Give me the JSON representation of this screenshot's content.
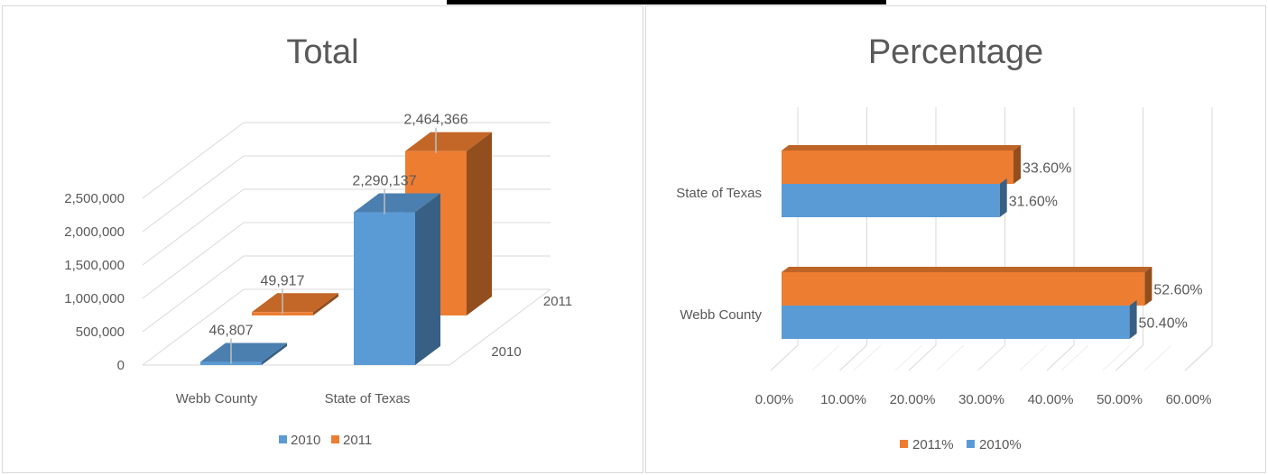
{
  "chart_data": [
    {
      "type": "bar",
      "title": "Total",
      "categories": [
        "Webb County",
        "State of Texas"
      ],
      "depth_labels": [
        "2010",
        "2011"
      ],
      "series": [
        {
          "name": "2010",
          "values": [
            46807,
            2290137
          ],
          "labels": [
            "46,807",
            "2,290,137"
          ]
        },
        {
          "name": "2011",
          "values": [
            49917,
            2464366
          ],
          "labels": [
            "49,917",
            "2,464,366"
          ]
        }
      ],
      "yticks": [
        "0",
        "500,000",
        "1,000,000",
        "1,500,000",
        "2,000,000",
        "2,500,000"
      ],
      "ylim": [
        0,
        2500000
      ],
      "three_d": true,
      "grid": true,
      "legend": "bottom",
      "colors": {
        "2010": "#5b9bd5",
        "2011": "#ed7d31"
      }
    },
    {
      "type": "bar",
      "orientation": "horizontal",
      "title": "Percentage",
      "categories": [
        "Webb County",
        "State of Texas"
      ],
      "series": [
        {
          "name": "2011%",
          "values": [
            52.6,
            33.6
          ],
          "labels": [
            "52.60%",
            "33.60%"
          ]
        },
        {
          "name": "2010%",
          "values": [
            50.4,
            31.6
          ],
          "labels": [
            "50.40%",
            "31.60%"
          ]
        }
      ],
      "xticks": [
        "0.00%",
        "10.00%",
        "20.00%",
        "30.00%",
        "40.00%",
        "50.00%",
        "60.00%"
      ],
      "xlim": [
        0,
        60
      ],
      "three_d": true,
      "grid": true,
      "legend": "bottom",
      "colors": {
        "2011%": "#ed7d31",
        "2010%": "#5b9bd5"
      }
    }
  ]
}
